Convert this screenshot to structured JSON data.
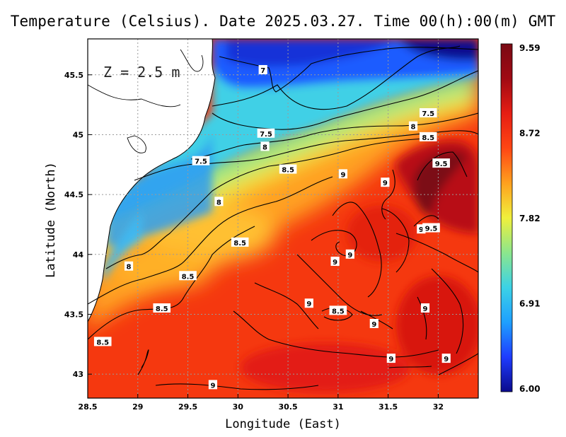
{
  "title": "Temperature (Celsius). Date 2025.03.27. Time 00(h):00(m) GMT",
  "depth_label": "Z = 2.5 m",
  "x_axis": {
    "label": "Longitude (East)",
    "range": [
      28.5,
      32.4
    ],
    "ticks": [
      28.5,
      29,
      29.5,
      30,
      30.5,
      31,
      31.5,
      32
    ],
    "tick_labels": [
      "28.5",
      "29",
      "29.5",
      "30",
      "30.5",
      "31",
      "31.5",
      "32"
    ]
  },
  "y_axis": {
    "label": "Latitude (North)",
    "range": [
      42.8,
      45.8
    ],
    "ticks": [
      43,
      43.5,
      44,
      44.5,
      45,
      45.5
    ],
    "tick_labels": [
      "43",
      "43.5",
      "44",
      "44.5",
      "45",
      "45.5"
    ]
  },
  "colorbar": {
    "min": 6.0,
    "max": 9.59,
    "labels": [
      "9.59",
      "8.72",
      "7.82",
      "6.91",
      "6.00"
    ],
    "colors": [
      "#0a0a8c",
      "#1e3cff",
      "#1ea0ff",
      "#3cd2e6",
      "#8ce68c",
      "#f0f03c",
      "#ffa01e",
      "#ff4614",
      "#e61e14",
      "#a00a14",
      "#7a0a14"
    ]
  },
  "grid": "dotted",
  "contour_labels": [
    {
      "text": "7",
      "lon": 30.25,
      "lat": 45.54
    },
    {
      "text": "7.5",
      "lon": 31.9,
      "lat": 45.18
    },
    {
      "text": "8",
      "lon": 31.75,
      "lat": 45.07
    },
    {
      "text": "8.5",
      "lon": 31.9,
      "lat": 44.98
    },
    {
      "text": "7.5",
      "lon": 30.28,
      "lat": 45.01
    },
    {
      "text": "8",
      "lon": 30.27,
      "lat": 44.9
    },
    {
      "text": "7.5",
      "lon": 29.63,
      "lat": 44.78
    },
    {
      "text": "8.5",
      "lon": 30.5,
      "lat": 44.71
    },
    {
      "text": "9.5",
      "lon": 32.03,
      "lat": 44.76
    },
    {
      "text": "9",
      "lon": 31.05,
      "lat": 44.67
    },
    {
      "text": "9",
      "lon": 31.47,
      "lat": 44.6
    },
    {
      "text": "8",
      "lon": 29.81,
      "lat": 44.44
    },
    {
      "text": "9",
      "lon": 31.83,
      "lat": 44.21
    },
    {
      "text": "9.5",
      "lon": 31.93,
      "lat": 44.22
    },
    {
      "text": "8.5",
      "lon": 30.02,
      "lat": 44.1
    },
    {
      "text": "9",
      "lon": 31.12,
      "lat": 44.0
    },
    {
      "text": "9",
      "lon": 30.97,
      "lat": 43.94
    },
    {
      "text": "8",
      "lon": 28.91,
      "lat": 43.9
    },
    {
      "text": "8.5",
      "lon": 29.5,
      "lat": 43.82
    },
    {
      "text": "9",
      "lon": 30.71,
      "lat": 43.59
    },
    {
      "text": "8.5",
      "lon": 29.24,
      "lat": 43.55
    },
    {
      "text": "8.5",
      "lon": 31.0,
      "lat": 43.53
    },
    {
      "text": "9",
      "lon": 31.87,
      "lat": 43.55
    },
    {
      "text": "9",
      "lon": 31.36,
      "lat": 43.42
    },
    {
      "text": "8.5",
      "lon": 28.65,
      "lat": 43.27
    },
    {
      "text": "9",
      "lon": 31.53,
      "lat": 43.13
    },
    {
      "text": "9",
      "lon": 32.08,
      "lat": 43.13
    },
    {
      "text": "9",
      "lon": 29.75,
      "lat": 42.91
    }
  ]
}
